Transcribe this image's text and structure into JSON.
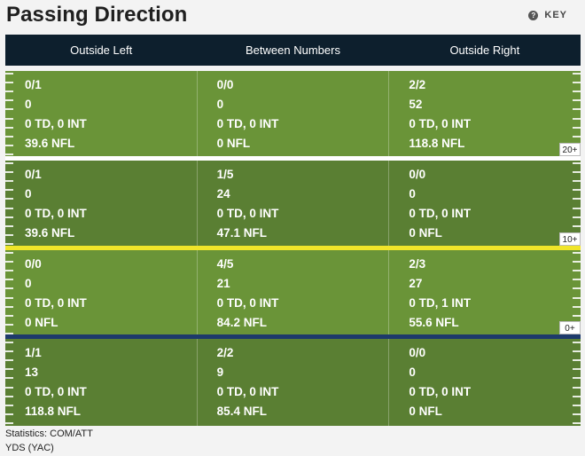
{
  "title": "Passing Direction",
  "key_label": "KEY",
  "columns": [
    "Outside Left",
    "Between Numbers",
    "Outside Right"
  ],
  "zones": [
    {
      "label": "20+",
      "cells": [
        [
          "0/1",
          "0",
          "0 TD, 0 INT",
          "39.6 NFL"
        ],
        [
          "0/0",
          "0",
          "0 TD, 0 INT",
          "0 NFL"
        ],
        [
          "2/2",
          "52",
          "0 TD, 0 INT",
          "118.8 NFL"
        ]
      ]
    },
    {
      "label": "10+",
      "cells": [
        [
          "0/1",
          "0",
          "0 TD, 0 INT",
          "39.6 NFL"
        ],
        [
          "1/5",
          "24",
          "0 TD, 0 INT",
          "47.1 NFL"
        ],
        [
          "0/0",
          "0",
          "0 TD, 0 INT",
          "0 NFL"
        ]
      ]
    },
    {
      "label": "0+",
      "cells": [
        [
          "0/0",
          "0",
          "0 TD, 0 INT",
          "0 NFL"
        ],
        [
          "4/5",
          "21",
          "0 TD, 0 INT",
          "84.2 NFL"
        ],
        [
          "2/3",
          "27",
          "0 TD, 1 INT",
          "55.6 NFL"
        ]
      ]
    },
    {
      "label": "",
      "cells": [
        [
          "1/1",
          "13",
          "0 TD, 0 INT",
          "118.8 NFL"
        ],
        [
          "2/2",
          "9",
          "0 TD, 0 INT",
          "85.4 NFL"
        ],
        [
          "0/0",
          "0",
          "0 TD, 0 INT",
          "0 NFL"
        ]
      ]
    }
  ],
  "footer": [
    "Statistics: COM/ATT",
    "YDS (YAC)"
  ],
  "colors": {
    "field_light": "#6a9438",
    "field_dark": "#5a7f33",
    "header_bg": "#0d1f2d",
    "line_20": "#ffffff",
    "line_10": "#f0e52a",
    "line_0": "#1d3a6b"
  }
}
